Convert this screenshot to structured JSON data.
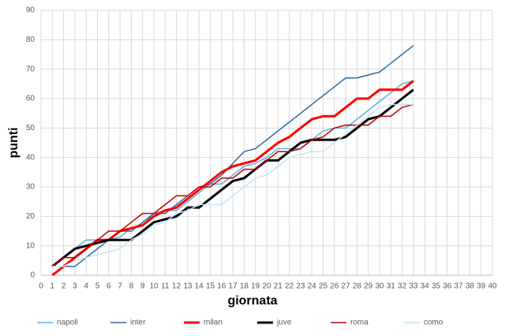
{
  "chart_data": {
    "type": "line",
    "xlabel": "giornata",
    "ylabel": "punti",
    "x": [
      1,
      2,
      3,
      4,
      5,
      6,
      7,
      8,
      9,
      10,
      11,
      12,
      13,
      14,
      15,
      16,
      17,
      18,
      19,
      20,
      21,
      22,
      23,
      24,
      25,
      26,
      27,
      28,
      29,
      30,
      31,
      32,
      33
    ],
    "series": [
      {
        "name": "napoli",
        "color": "#5aaee0",
        "width": 1.5,
        "values": [
          3,
          6,
          9,
          12,
          12,
          12,
          13,
          16,
          17,
          21,
          22,
          22,
          25,
          28,
          31,
          31,
          34,
          37,
          38,
          40,
          43,
          43,
          43,
          46,
          49,
          50,
          50,
          53,
          56,
          59,
          62,
          65,
          66
        ]
      },
      {
        "name": "inter",
        "color": "#2e6da4",
        "width": 1.5,
        "values": [
          3,
          3,
          3,
          6,
          9,
          12,
          15,
          15,
          18,
          21,
          21,
          24,
          27,
          30,
          31,
          34,
          38,
          42,
          43,
          46,
          49,
          52,
          55,
          58,
          61,
          64,
          67,
          67,
          68,
          69,
          72,
          75,
          78
        ]
      },
      {
        "name": "milan",
        "color": "#ff0000",
        "width": 3,
        "values": [
          0,
          3,
          6,
          9,
          12,
          12,
          15,
          16,
          17,
          20,
          22,
          23,
          26,
          29,
          32,
          35,
          37,
          38,
          39,
          42,
          45,
          47,
          50,
          53,
          54,
          54,
          57,
          60,
          60,
          63,
          63,
          63,
          66
        ]
      },
      {
        "name": "juve",
        "color": "#000000",
        "width": 3,
        "values": [
          3,
          6,
          9,
          10,
          11,
          12,
          12,
          12,
          15,
          18,
          19,
          20,
          23,
          23,
          26,
          29,
          32,
          33,
          36,
          39,
          39,
          42,
          45,
          46,
          46,
          46,
          47,
          50,
          53,
          54,
          57,
          60,
          63
        ]
      },
      {
        "name": "roma",
        "color": "#c00000",
        "width": 1.5,
        "values": [
          3,
          6,
          6,
          9,
          12,
          15,
          15,
          18,
          21,
          21,
          24,
          27,
          27,
          30,
          30,
          33,
          33,
          36,
          36,
          39,
          42,
          42,
          43,
          46,
          47,
          50,
          51,
          51,
          51,
          54,
          54,
          57,
          58
        ]
      },
      {
        "name": "como",
        "color": "#c5e4f5",
        "width": 1.5,
        "values": [
          3,
          3,
          5,
          6,
          7,
          8,
          9,
          12,
          14,
          17,
          18,
          21,
          22,
          24,
          24,
          24,
          27,
          30,
          33,
          34,
          37,
          40,
          41,
          42,
          42,
          45,
          48,
          51,
          54,
          57,
          58,
          58,
          58
        ]
      }
    ],
    "xlim": [
      0,
      40
    ],
    "xticks": [
      0,
      1,
      2,
      3,
      4,
      5,
      6,
      7,
      8,
      9,
      10,
      11,
      12,
      13,
      14,
      15,
      16,
      17,
      18,
      19,
      20,
      21,
      22,
      23,
      24,
      25,
      26,
      27,
      28,
      29,
      30,
      31,
      32,
      33,
      34,
      35,
      36,
      37,
      38,
      39,
      40
    ],
    "ylim": [
      0,
      90
    ],
    "yticks": [
      0,
      10,
      20,
      30,
      40,
      50,
      60,
      70,
      80,
      90
    ],
    "grid": true,
    "legend": "bottom"
  }
}
